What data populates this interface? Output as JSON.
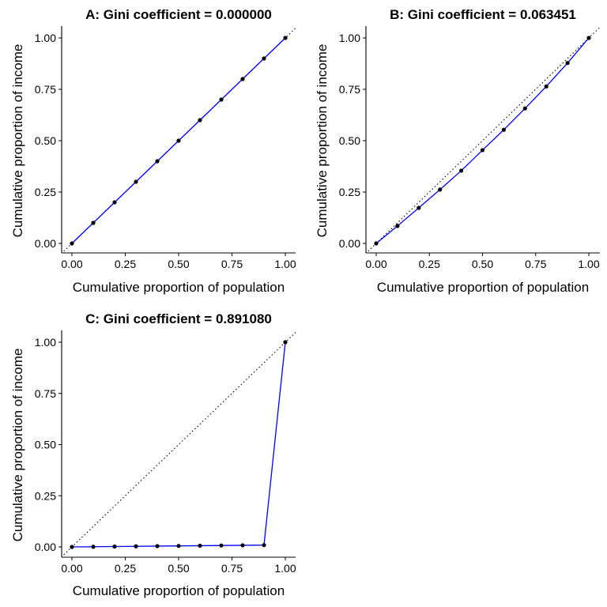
{
  "chart_data": [
    {
      "type": "line",
      "title": "A: Gini coefficient = 0.000000",
      "xlabel": "Cumulative proportion of population",
      "ylabel": "Cumulative proportion of income",
      "xlim": [
        0,
        1
      ],
      "ylim": [
        0,
        1
      ],
      "xticks": [
        "0.00",
        "0.25",
        "0.50",
        "0.75",
        "1.00"
      ],
      "yticks": [
        "0.00",
        "0.25",
        "0.50",
        "0.75",
        "1.00"
      ],
      "grid": false,
      "reference_line": "dotted diagonal y = x",
      "line_color": "#0000ff",
      "point_color": "#000000",
      "x": [
        0.0,
        0.1,
        0.2,
        0.3,
        0.4,
        0.5,
        0.6,
        0.7,
        0.8,
        0.9,
        1.0
      ],
      "y": [
        0.0,
        0.1,
        0.2,
        0.3,
        0.4,
        0.5,
        0.6,
        0.7,
        0.8,
        0.9,
        1.0
      ]
    },
    {
      "type": "line",
      "title": "B: Gini coefficient = 0.063451",
      "xlabel": "Cumulative proportion of population",
      "ylabel": "Cumulative proportion of income",
      "xlim": [
        0,
        1
      ],
      "ylim": [
        0,
        1
      ],
      "xticks": [
        "0.00",
        "0.25",
        "0.50",
        "0.75",
        "1.00"
      ],
      "yticks": [
        "0.00",
        "0.25",
        "0.50",
        "0.75",
        "1.00"
      ],
      "grid": false,
      "reference_line": "dotted diagonal y = x",
      "line_color": "#0000ff",
      "point_color": "#000000",
      "x": [
        0.0,
        0.1,
        0.2,
        0.3,
        0.4,
        0.5,
        0.6,
        0.7,
        0.8,
        0.9,
        1.0
      ],
      "y": [
        0.0,
        0.085,
        0.173,
        0.262,
        0.354,
        0.454,
        0.553,
        0.657,
        0.764,
        0.878,
        1.0
      ]
    },
    {
      "type": "line",
      "title": "C: Gini coefficient = 0.891080",
      "xlabel": "Cumulative proportion of population",
      "ylabel": "Cumulative proportion of income",
      "xlim": [
        0,
        1
      ],
      "ylim": [
        0,
        1
      ],
      "xticks": [
        "0.00",
        "0.25",
        "0.50",
        "0.75",
        "1.00"
      ],
      "yticks": [
        "0.00",
        "0.25",
        "0.50",
        "0.75",
        "1.00"
      ],
      "grid": false,
      "reference_line": "dotted diagonal y = x",
      "line_color": "#0000ff",
      "point_color": "#000000",
      "x": [
        0.0,
        0.1,
        0.2,
        0.3,
        0.4,
        0.5,
        0.6,
        0.7,
        0.8,
        0.9,
        1.0
      ],
      "y": [
        0.0,
        0.001,
        0.002,
        0.003,
        0.004,
        0.005,
        0.006,
        0.007,
        0.008,
        0.009,
        1.0
      ]
    }
  ]
}
